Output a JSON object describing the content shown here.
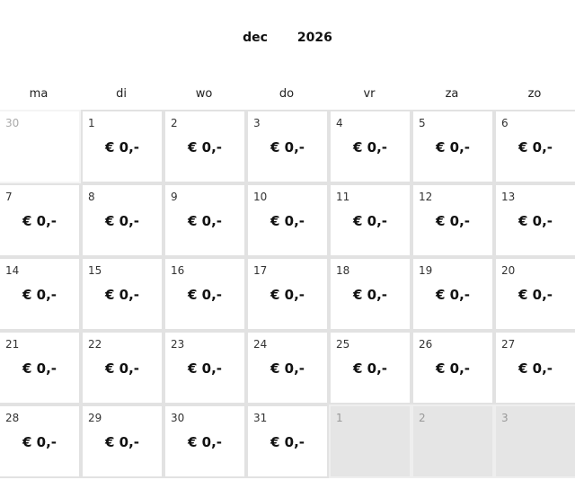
{
  "header": {
    "month": "dec",
    "year": "2026"
  },
  "weekdays": [
    "ma",
    "di",
    "wo",
    "do",
    "vr",
    "za",
    "zo"
  ],
  "days": [
    {
      "n": "30",
      "price": "",
      "type": "prev"
    },
    {
      "n": "1",
      "price": "€ 0,-"
    },
    {
      "n": "2",
      "price": "€ 0,-"
    },
    {
      "n": "3",
      "price": "€ 0,-"
    },
    {
      "n": "4",
      "price": "€ 0,-"
    },
    {
      "n": "5",
      "price": "€ 0,-"
    },
    {
      "n": "6",
      "price": "€ 0,-"
    },
    {
      "n": "7",
      "price": "€ 0,-"
    },
    {
      "n": "8",
      "price": "€ 0,-"
    },
    {
      "n": "9",
      "price": "€ 0,-"
    },
    {
      "n": "10",
      "price": "€ 0,-"
    },
    {
      "n": "11",
      "price": "€ 0,-"
    },
    {
      "n": "12",
      "price": "€ 0,-"
    },
    {
      "n": "13",
      "price": "€ 0,-"
    },
    {
      "n": "14",
      "price": "€ 0,-"
    },
    {
      "n": "15",
      "price": "€ 0,-"
    },
    {
      "n": "16",
      "price": "€ 0,-"
    },
    {
      "n": "17",
      "price": "€ 0,-"
    },
    {
      "n": "18",
      "price": "€ 0,-"
    },
    {
      "n": "19",
      "price": "€ 0,-"
    },
    {
      "n": "20",
      "price": "€ 0,-"
    },
    {
      "n": "21",
      "price": "€ 0,-"
    },
    {
      "n": "22",
      "price": "€ 0,-"
    },
    {
      "n": "23",
      "price": "€ 0,-"
    },
    {
      "n": "24",
      "price": "€ 0,-"
    },
    {
      "n": "25",
      "price": "€ 0,-"
    },
    {
      "n": "26",
      "price": "€ 0,-"
    },
    {
      "n": "27",
      "price": "€ 0,-"
    },
    {
      "n": "28",
      "price": "€ 0,-"
    },
    {
      "n": "29",
      "price": "€ 0,-"
    },
    {
      "n": "30",
      "price": "€ 0,-"
    },
    {
      "n": "31",
      "price": "€ 0,-"
    },
    {
      "n": "1",
      "price": "",
      "type": "next"
    },
    {
      "n": "2",
      "price": "",
      "type": "next"
    },
    {
      "n": "3",
      "price": "",
      "type": "next"
    }
  ]
}
